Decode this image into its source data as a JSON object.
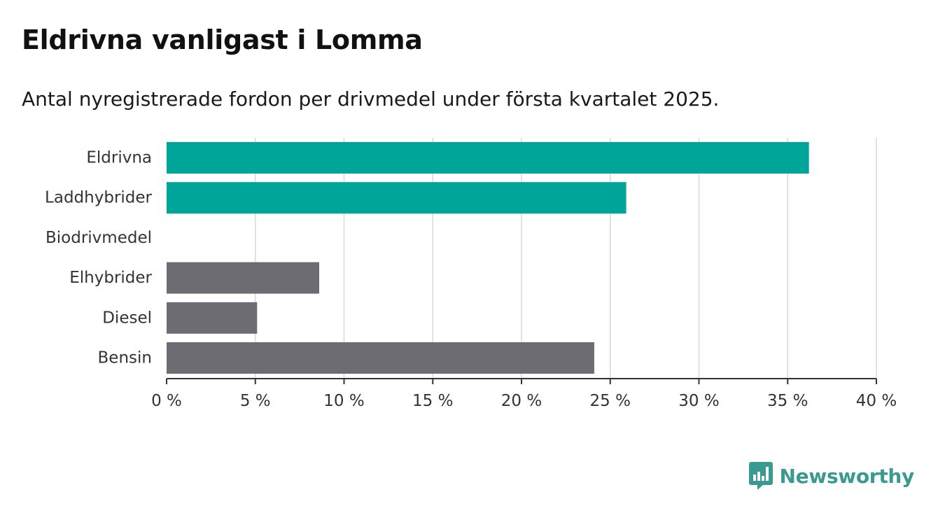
{
  "header": {
    "title": "Eldrivna vanligast i Lomma",
    "subtitle": "Antal nyregistrerade fordon per drivmedel under första kvartalet 2025."
  },
  "brand": {
    "name": "Newsworthy",
    "icon": "bar-chart-speech-bubble-icon",
    "color": "#3a9a92"
  },
  "colors": {
    "highlight": "#00a59a",
    "default": "#6d6c72",
    "grid": "#d8d8d8",
    "axis": "#333333"
  },
  "chart_data": {
    "type": "bar",
    "orientation": "horizontal",
    "categories": [
      "Eldrivna",
      "Laddhybrider",
      "Biodrivmedel",
      "Elhybrider",
      "Diesel",
      "Bensin"
    ],
    "values": [
      36.2,
      25.9,
      0,
      8.6,
      5.1,
      24.1
    ],
    "highlighted": [
      true,
      true,
      false,
      false,
      false,
      false
    ],
    "xlim": [
      0,
      40
    ],
    "xticks": [
      0,
      5,
      10,
      15,
      20,
      25,
      30,
      35,
      40
    ],
    "xtick_labels": [
      "0 %",
      "5 %",
      "10 %",
      "15 %",
      "20 %",
      "25 %",
      "30 %",
      "35 %",
      "40 %"
    ],
    "unit": "%",
    "grid": true,
    "title": "Eldrivna vanligast i Lomma",
    "subtitle": "Antal nyregistrerade fordon per drivmedel under första kvartalet 2025.",
    "xlabel": "",
    "ylabel": ""
  }
}
